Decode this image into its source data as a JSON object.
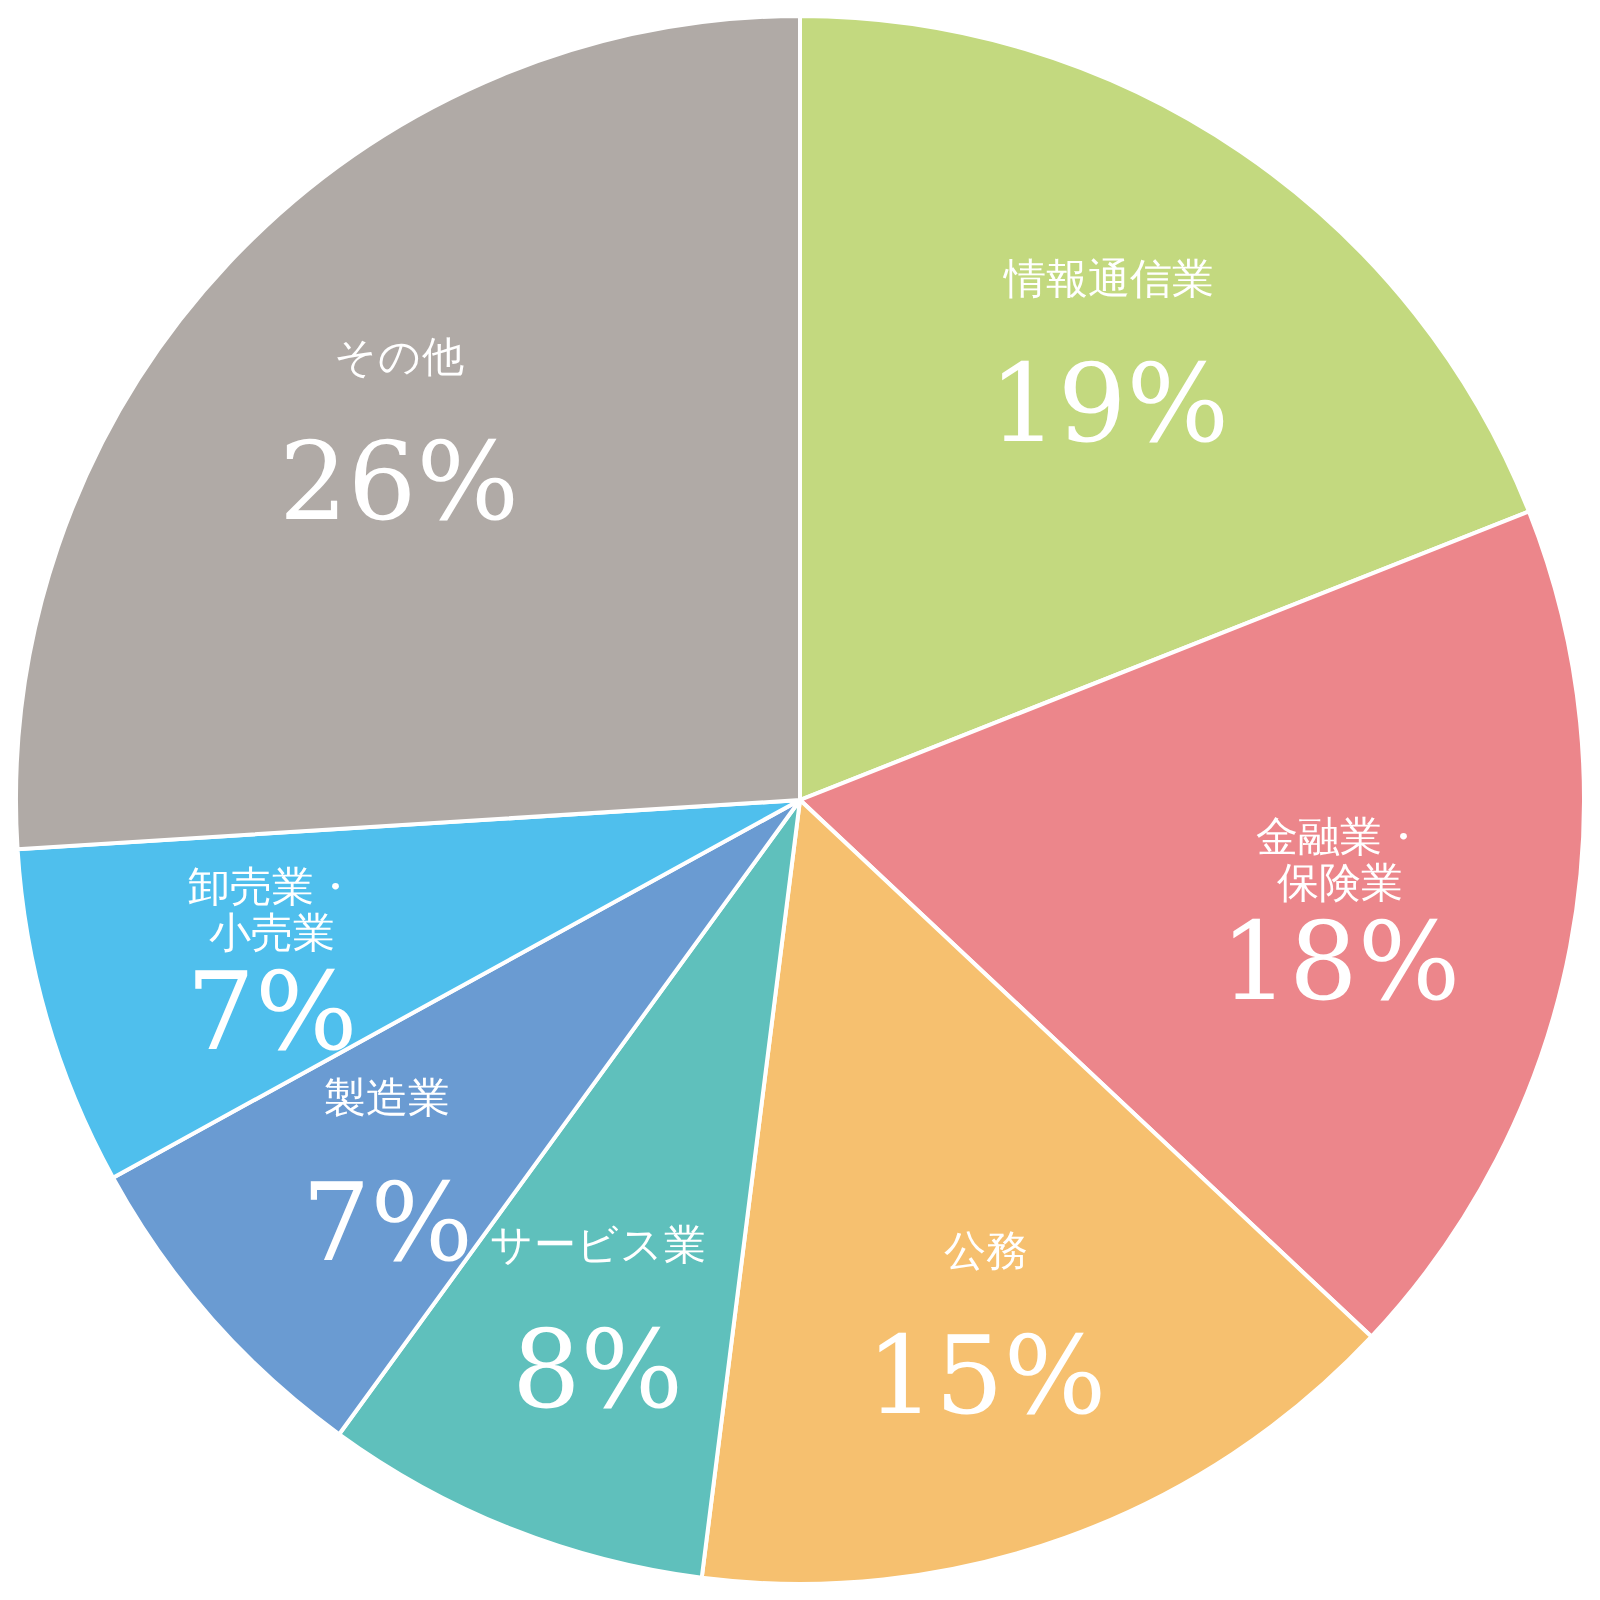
{
  "chart_data": {
    "type": "pie",
    "categories": [
      "情報通信業",
      "金融業・保険業",
      "公務",
      "サービス業",
      "製造業",
      "卸売業・小売業",
      "その他"
    ],
    "values": [
      19,
      18,
      15,
      8,
      7,
      7,
      26
    ],
    "value_labels": [
      "19%",
      "18%",
      "15%",
      "8%",
      "7%",
      "7%",
      "26%"
    ],
    "colors": [
      "#c3d97f",
      "#ec868b",
      "#f6c06f",
      "#5fc0bc",
      "#6a9bd2",
      "#4fbfed",
      "#b0aaa6"
    ]
  }
}
